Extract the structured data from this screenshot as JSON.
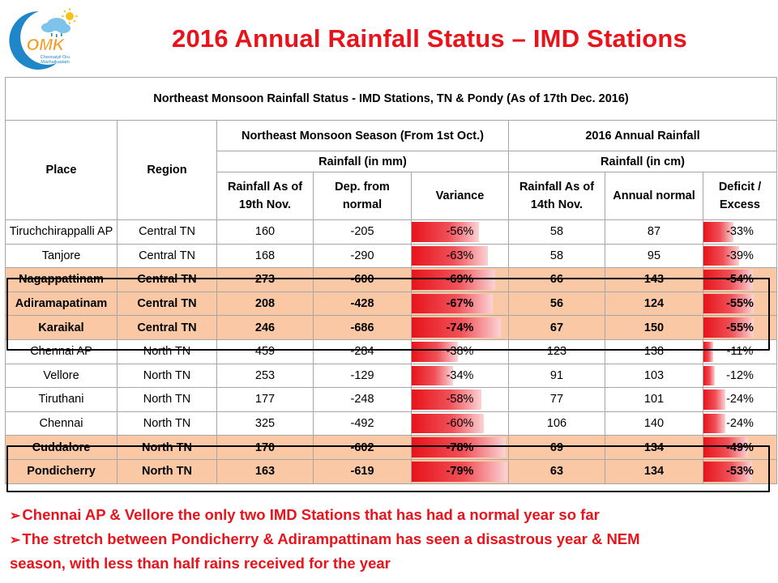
{
  "logo": {
    "brand": "OMK",
    "tagline_line1": "Chennaiyil Oru",
    "tagline_line2": "Mazhaikaalam"
  },
  "title": "2016 Annual Rainfall Status – IMD Stations",
  "table": {
    "caption": "Northeast Monsoon Rainfall Status - IMD Stations, TN & Pondy (As of 17th Dec. 2016)",
    "headers": {
      "place": "Place",
      "region": "Region",
      "nem_group": "Northeast Monsoon Season (From 1st Oct.)",
      "annual_group": "2016 Annual Rainfall",
      "nem_unit": "Rainfall (in mm)",
      "annual_unit": "Rainfall (in cm)",
      "rain_asof_nov19_l1": "Rainfall As of",
      "rain_asof_nov19_l2": "19th Nov.",
      "dep_l1": "Dep. from",
      "dep_l2": "normal",
      "variance": "Variance",
      "rain_asof_nov14_l1": "Rainfall As of",
      "rain_asof_nov14_l2": "14th Nov.",
      "annual_normal": "Annual normal",
      "deficit_l1": "Deficit /",
      "deficit_l2": "Excess"
    },
    "rows": [
      {
        "place": "Tiruchchirappalli AP",
        "region": "Central TN",
        "rain_mm": "160",
        "dep": "-205",
        "variance": "-56%",
        "variance_value": -56,
        "rain_cm": "58",
        "normal_cm": "87",
        "deficit": "-33%",
        "deficit_value": -33,
        "highlight": false
      },
      {
        "place": "Tanjore",
        "region": "Central TN",
        "rain_mm": "168",
        "dep": "-290",
        "variance": "-63%",
        "variance_value": -63,
        "rain_cm": "58",
        "normal_cm": "95",
        "deficit": "-39%",
        "deficit_value": -39,
        "highlight": false
      },
      {
        "place": "Nagappattinam",
        "region": "Central TN",
        "rain_mm": "273",
        "dep": "-600",
        "variance": "-69%",
        "variance_value": -69,
        "rain_cm": "66",
        "normal_cm": "143",
        "deficit": "-54%",
        "deficit_value": -54,
        "highlight": true
      },
      {
        "place": "Adiramapatinam",
        "region": "Central TN",
        "rain_mm": "208",
        "dep": "-428",
        "variance": "-67%",
        "variance_value": -67,
        "rain_cm": "56",
        "normal_cm": "124",
        "deficit": "-55%",
        "deficit_value": -55,
        "highlight": true
      },
      {
        "place": "Karaikal",
        "region": "Central TN",
        "rain_mm": "246",
        "dep": "-686",
        "variance": "-74%",
        "variance_value": -74,
        "rain_cm": "67",
        "normal_cm": "150",
        "deficit": "-55%",
        "deficit_value": -55,
        "highlight": true
      },
      {
        "place": "Chennai AP",
        "region": "North TN",
        "rain_mm": "459",
        "dep": "-284",
        "variance": "-38%",
        "variance_value": -38,
        "rain_cm": "123",
        "normal_cm": "138",
        "deficit": "-11%",
        "deficit_value": -11,
        "highlight": false
      },
      {
        "place": "Vellore",
        "region": "North TN",
        "rain_mm": "253",
        "dep": "-129",
        "variance": "-34%",
        "variance_value": -34,
        "rain_cm": "91",
        "normal_cm": "103",
        "deficit": "-12%",
        "deficit_value": -12,
        "highlight": false
      },
      {
        "place": "Tiruthani",
        "region": "North TN",
        "rain_mm": "177",
        "dep": "-248",
        "variance": "-58%",
        "variance_value": -58,
        "rain_cm": "77",
        "normal_cm": "101",
        "deficit": "-24%",
        "deficit_value": -24,
        "highlight": false
      },
      {
        "place": "Chennai",
        "region": "North TN",
        "rain_mm": "325",
        "dep": "-492",
        "variance": "-60%",
        "variance_value": -60,
        "rain_cm": "106",
        "normal_cm": "140",
        "deficit": "-24%",
        "deficit_value": -24,
        "highlight": false
      },
      {
        "place": "Cuddalore",
        "region": "North TN",
        "rain_mm": "170",
        "dep": "-602",
        "variance": "-78%",
        "variance_value": -78,
        "rain_cm": "69",
        "normal_cm": "134",
        "deficit": "-49%",
        "deficit_value": -49,
        "highlight": true
      },
      {
        "place": "Pondicherry",
        "region": "North TN",
        "rain_mm": "163",
        "dep": "-619",
        "variance": "-79%",
        "variance_value": -79,
        "rain_cm": "63",
        "normal_cm": "134",
        "deficit": "-53%",
        "deficit_value": -53,
        "highlight": true
      }
    ]
  },
  "notes": {
    "arrow": "➢",
    "line1": "Chennai AP & Vellore the only two IMD Stations that has had a normal year so far",
    "line2a": "The stretch between Pondicherry & Adirampattinam has seen a disastrous year & NEM",
    "line2b": "season, with less than half rains received for the year"
  },
  "colors": {
    "accent_red": "#e8131b",
    "highlight_row": "#fac8a4",
    "grid_border": "#a6a6a6"
  }
}
